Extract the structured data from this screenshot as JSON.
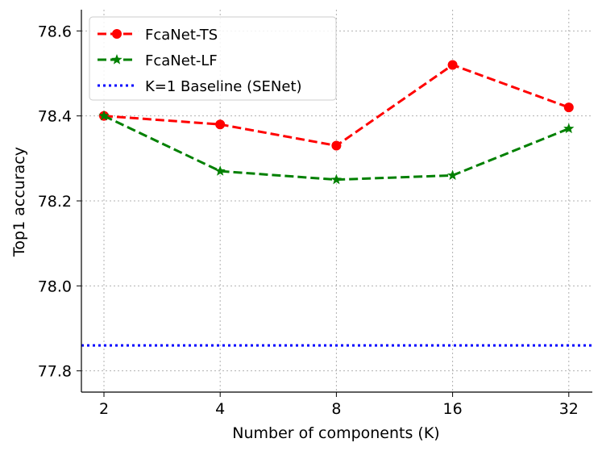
{
  "chart_data": {
    "type": "line",
    "title": "",
    "xlabel": "Number of components (K)",
    "ylabel": "Top1 accuracy",
    "categories": [
      "2",
      "4",
      "8",
      "16",
      "32"
    ],
    "ylim": [
      77.75,
      78.65
    ],
    "yticks": [
      "77.8",
      "78.0",
      "78.2",
      "78.4",
      "78.6"
    ],
    "grid": true,
    "legend_position": "top-left",
    "series": [
      {
        "name": "FcaNet-TS",
        "values": [
          78.4,
          78.38,
          78.33,
          78.52,
          78.42
        ],
        "color": "#ff0000",
        "line_style": "dashed",
        "marker": "circle"
      },
      {
        "name": "FcaNet-LF",
        "values": [
          78.4,
          78.27,
          78.25,
          78.26,
          78.37
        ],
        "color": "#008000",
        "line_style": "dashed",
        "marker": "star"
      },
      {
        "name": "K=1 Baseline (SENet)",
        "value": 77.86,
        "color": "#0000ff",
        "line_style": "dotted",
        "marker": "none",
        "kind": "horizontal-line"
      }
    ]
  }
}
